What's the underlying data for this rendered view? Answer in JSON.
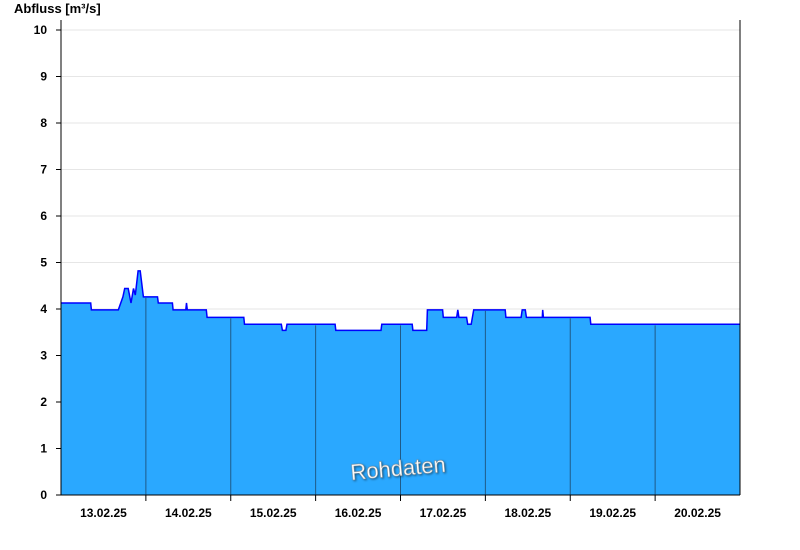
{
  "chart_data": {
    "type": "area",
    "title": "",
    "ylabel": "Abfluss [m³/s]",
    "xlabel": "",
    "ylim": [
      0,
      10
    ],
    "yticks": [
      "0",
      "1",
      "2",
      "3",
      "4",
      "5",
      "6",
      "7",
      "8",
      "9",
      "10"
    ],
    "xlim": [
      "2025-02-13T00:00",
      "2025-02-21T00:00"
    ],
    "xtick_labels": [
      "13.02.25",
      "14.02.25",
      "15.02.25",
      "16.02.25",
      "17.02.25",
      "18.02.25",
      "19.02.25",
      "20.02.25"
    ],
    "grid": true,
    "watermark": "Rohdaten",
    "colors": {
      "fill": "#2aa8ff",
      "line": "#0000ff",
      "day_separator": "#1f5a87",
      "grid": "#e6e6e6"
    },
    "series": [
      {
        "points": [
          [
            "2025-02-13T00:00",
            4.13
          ],
          [
            "2025-02-13T08:24",
            4.13
          ],
          [
            "2025-02-13T08:36",
            3.98
          ],
          [
            "2025-02-13T16:12",
            3.98
          ],
          [
            "2025-02-13T17:30",
            4.26
          ],
          [
            "2025-02-13T18:00",
            4.44
          ],
          [
            "2025-02-13T19:00",
            4.44
          ],
          [
            "2025-02-13T19:48",
            4.13
          ],
          [
            "2025-02-13T20:30",
            4.44
          ],
          [
            "2025-02-13T21:00",
            4.3
          ],
          [
            "2025-02-13T21:48",
            4.82
          ],
          [
            "2025-02-13T22:24",
            4.82
          ],
          [
            "2025-02-13T23:18",
            4.26
          ],
          [
            "2025-02-14T03:18",
            4.26
          ],
          [
            "2025-02-14T03:30",
            4.13
          ],
          [
            "2025-02-14T07:30",
            4.13
          ],
          [
            "2025-02-14T07:42",
            3.98
          ],
          [
            "2025-02-14T11:18",
            3.98
          ],
          [
            "2025-02-14T11:30",
            4.13
          ],
          [
            "2025-02-14T11:42",
            3.98
          ],
          [
            "2025-02-14T17:06",
            3.98
          ],
          [
            "2025-02-14T17:18",
            3.82
          ],
          [
            "2025-02-15T03:42",
            3.82
          ],
          [
            "2025-02-15T03:54",
            3.67
          ],
          [
            "2025-02-15T14:18",
            3.67
          ],
          [
            "2025-02-15T14:36",
            3.54
          ],
          [
            "2025-02-15T15:36",
            3.54
          ],
          [
            "2025-02-15T15:54",
            3.67
          ],
          [
            "2025-02-16T05:30",
            3.67
          ],
          [
            "2025-02-16T05:42",
            3.54
          ],
          [
            "2025-02-16T18:30",
            3.54
          ],
          [
            "2025-02-16T18:42",
            3.67
          ],
          [
            "2025-02-17T03:18",
            3.67
          ],
          [
            "2025-02-17T03:30",
            3.54
          ],
          [
            "2025-02-17T07:24",
            3.54
          ],
          [
            "2025-02-17T07:36",
            3.98
          ],
          [
            "2025-02-17T11:54",
            3.98
          ],
          [
            "2025-02-17T12:06",
            3.82
          ],
          [
            "2025-02-17T15:54",
            3.82
          ],
          [
            "2025-02-17T16:12",
            3.98
          ],
          [
            "2025-02-17T16:30",
            3.82
          ],
          [
            "2025-02-17T18:42",
            3.82
          ],
          [
            "2025-02-17T19:00",
            3.67
          ],
          [
            "2025-02-17T20:00",
            3.67
          ],
          [
            "2025-02-17T20:42",
            3.98
          ],
          [
            "2025-02-18T05:36",
            3.98
          ],
          [
            "2025-02-18T05:48",
            3.82
          ],
          [
            "2025-02-18T10:06",
            3.82
          ],
          [
            "2025-02-18T10:24",
            3.98
          ],
          [
            "2025-02-18T11:18",
            3.98
          ],
          [
            "2025-02-18T11:36",
            3.82
          ],
          [
            "2025-02-18T16:06",
            3.82
          ],
          [
            "2025-02-18T16:12",
            3.98
          ],
          [
            "2025-02-18T16:24",
            3.82
          ],
          [
            "2025-02-19T05:36",
            3.82
          ],
          [
            "2025-02-19T05:48",
            3.67
          ],
          [
            "2025-02-21T00:00",
            3.67
          ]
        ]
      }
    ]
  }
}
